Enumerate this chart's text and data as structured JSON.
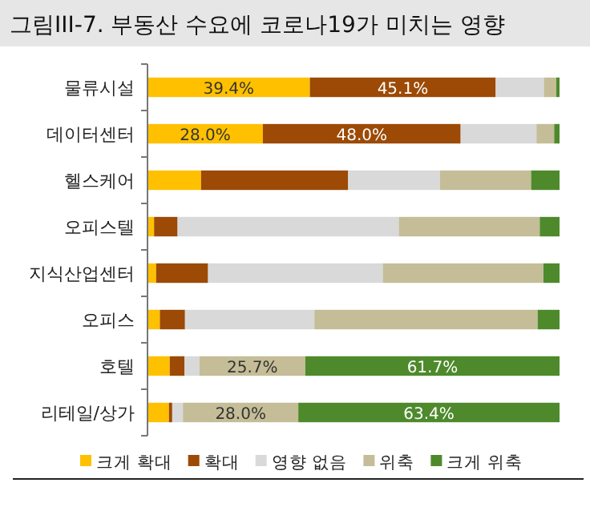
{
  "chart_data": {
    "type": "bar",
    "orientation": "horizontal",
    "stacked": true,
    "title": "그림III-7. 부동산 수요에 코로나19가 미치는 영향",
    "categories": [
      "물류시설",
      "데이터센터",
      "헬스케어",
      "오피스텔",
      "지식산업센터",
      "오피스",
      "호텔",
      "리테일/상가"
    ],
    "xlim": [
      0,
      100
    ],
    "tick_labels": "y",
    "grid": false,
    "legend": "bottom",
    "series": [
      {
        "name": "크게 확대",
        "color": "#ffc000",
        "values": [
          39.4,
          28.0,
          13.0,
          1.6,
          2.1,
          3.0,
          5.4,
          5.2
        ],
        "value_labels": [
          "39.4%",
          "28.0%",
          null,
          null,
          null,
          null,
          null,
          null
        ]
      },
      {
        "name": "확대",
        "color": "#9c4a06",
        "values": [
          45.1,
          48.0,
          35.7,
          5.7,
          12.6,
          6.1,
          3.6,
          0.8
        ],
        "value_labels": [
          "45.1%",
          "48.0%",
          null,
          null,
          null,
          null,
          null,
          null
        ]
      },
      {
        "name": "영향 없음",
        "color": "#d9d9d9",
        "values": [
          11.7,
          18.4,
          22.3,
          53.7,
          42.4,
          31.4,
          3.6,
          2.6
        ]
      },
      {
        "name": "위축",
        "color": "#c4bd97",
        "values": [
          3.0,
          4.3,
          22.1,
          34.2,
          39.0,
          54.2,
          25.7,
          28.0
        ],
        "value_labels": [
          null,
          null,
          null,
          null,
          null,
          null,
          "25.7%",
          "28.0%"
        ]
      },
      {
        "name": "크게 위축",
        "color": "#4e8a2c",
        "values": [
          0.8,
          1.3,
          6.9,
          4.8,
          3.9,
          5.3,
          61.7,
          63.4
        ],
        "value_labels": [
          null,
          null,
          null,
          null,
          null,
          null,
          "61.7%",
          "63.4%"
        ]
      }
    ]
  }
}
